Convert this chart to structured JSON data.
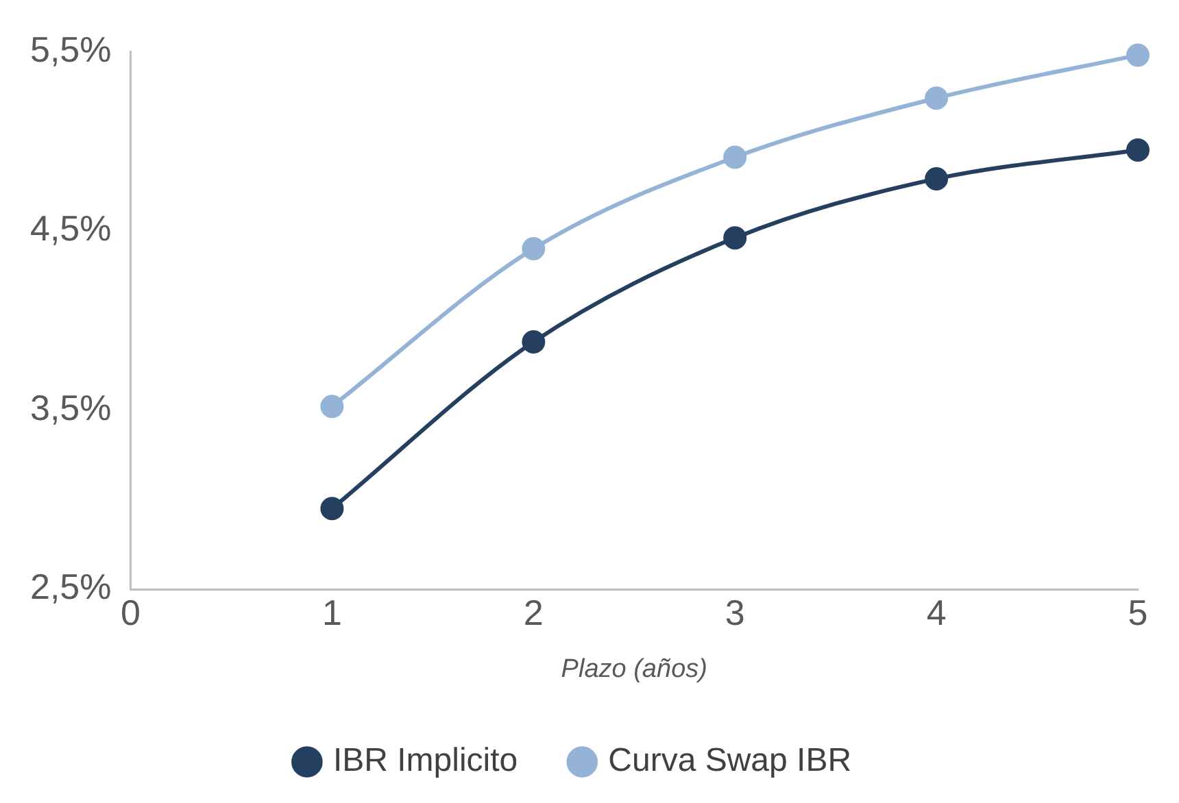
{
  "chart_data": {
    "type": "line",
    "xlabel": "Plazo (años)",
    "x": [
      1,
      2,
      3,
      4,
      5
    ],
    "series": [
      {
        "name": "IBR Implicito",
        "color": "#243f60",
        "values": [
          2.95,
          3.88,
          4.46,
          4.79,
          4.95
        ]
      },
      {
        "name": "Curva Swap IBR",
        "color": "#95b3d7",
        "values": [
          3.52,
          4.4,
          4.91,
          5.24,
          5.48
        ]
      }
    ],
    "xlim": [
      0,
      5
    ],
    "xticks": [
      0,
      1,
      2,
      3,
      4,
      5
    ],
    "ylim": [
      2.5,
      5.5
    ],
    "yticks": [
      {
        "value": 2.5,
        "label": "2,5%"
      },
      {
        "value": 3.5,
        "label": "3,5%"
      },
      {
        "value": 4.5,
        "label": "4,5%"
      },
      {
        "value": 5.5,
        "label": "5,5%"
      }
    ],
    "grid": false,
    "legend": "bottom",
    "marker": "circle",
    "line_style": "solid"
  }
}
